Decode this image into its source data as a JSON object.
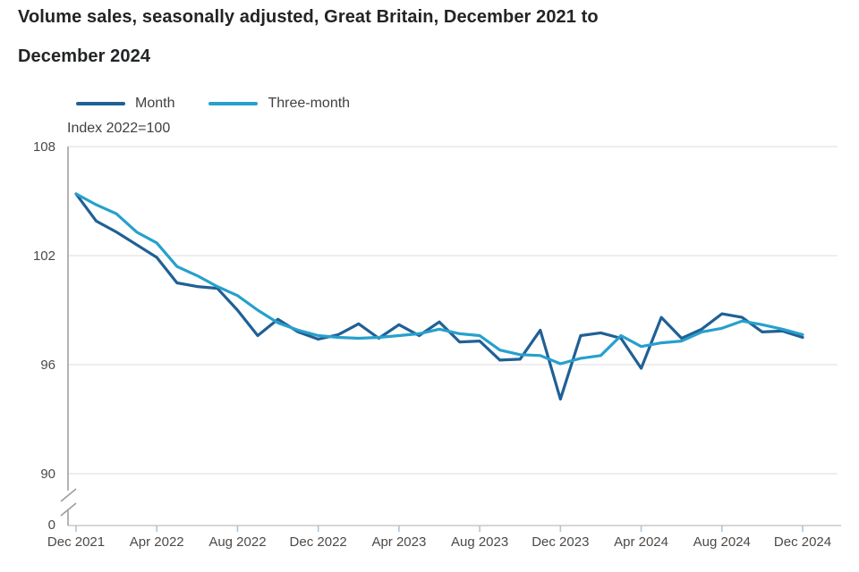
{
  "header": {
    "title_line1": "Volume sales, seasonally adjusted, Great Britain, December 2021 to",
    "title_line2": "December 2024"
  },
  "chart_data": {
    "type": "line",
    "title": "Volume sales, seasonally adjusted, Great Britain, December 2021 to December 2024",
    "index_label": "Index 2022=100",
    "legend_position": "top-left",
    "grid": "horizontal",
    "y_ticks": [
      108,
      102,
      96,
      90
    ],
    "y_bottom_label": "0",
    "y_axis_break": true,
    "ylim_shown": [
      90,
      108
    ],
    "x_tick_labels": [
      "Dec 2021",
      "Apr 2022",
      "Aug 2022",
      "Dec 2022",
      "Apr 2023",
      "Aug 2023",
      "Dec 2023",
      "Apr 2024",
      "Aug 2024",
      "Dec 2024"
    ],
    "x": [
      "Dec 2021",
      "Jan 2022",
      "Feb 2022",
      "Mar 2022",
      "Apr 2022",
      "May 2022",
      "Jun 2022",
      "Jul 2022",
      "Aug 2022",
      "Sep 2022",
      "Oct 2022",
      "Nov 2022",
      "Dec 2022",
      "Jan 2023",
      "Feb 2023",
      "Mar 2023",
      "Apr 2023",
      "May 2023",
      "Jun 2023",
      "Jul 2023",
      "Aug 2023",
      "Sep 2023",
      "Oct 2023",
      "Nov 2023",
      "Dec 2023",
      "Jan 2024",
      "Feb 2024",
      "Mar 2024",
      "Apr 2024",
      "May 2024",
      "Jun 2024",
      "Jul 2024",
      "Aug 2024",
      "Sep 2024",
      "Oct 2024",
      "Nov 2024",
      "Dec 2024"
    ],
    "series": [
      {
        "name": "Month",
        "color": "#206095",
        "values": [
          105.4,
          103.9,
          103.3,
          102.6,
          101.9,
          100.5,
          100.3,
          100.2,
          99.0,
          97.6,
          98.5,
          97.8,
          97.4,
          97.65,
          98.25,
          97.45,
          98.2,
          97.6,
          98.35,
          97.25,
          97.3,
          96.25,
          96.3,
          97.9,
          94.1,
          97.6,
          97.75,
          97.45,
          95.8,
          98.6,
          97.45,
          97.95,
          98.8,
          98.6,
          97.8,
          97.85,
          97.5
        ]
      },
      {
        "name": "Three-month",
        "color": "#27A0CC",
        "values": [
          105.4,
          104.8,
          104.3,
          103.3,
          102.7,
          101.4,
          100.9,
          100.3,
          99.8,
          99.0,
          98.3,
          97.9,
          97.6,
          97.5,
          97.45,
          97.5,
          97.6,
          97.7,
          97.95,
          97.7,
          97.6,
          96.8,
          96.55,
          96.5,
          96.05,
          96.35,
          96.5,
          97.6,
          97.0,
          97.2,
          97.3,
          97.8,
          98.0,
          98.4,
          98.2,
          97.95,
          97.65
        ]
      }
    ],
    "style": {
      "grid_color": "#dcdcdc",
      "axis_color": "#9b9b9b",
      "baseline_color": "#bdbdbd",
      "tick_color": "#a9c6dd",
      "label_color": "#4a4a4a"
    }
  }
}
